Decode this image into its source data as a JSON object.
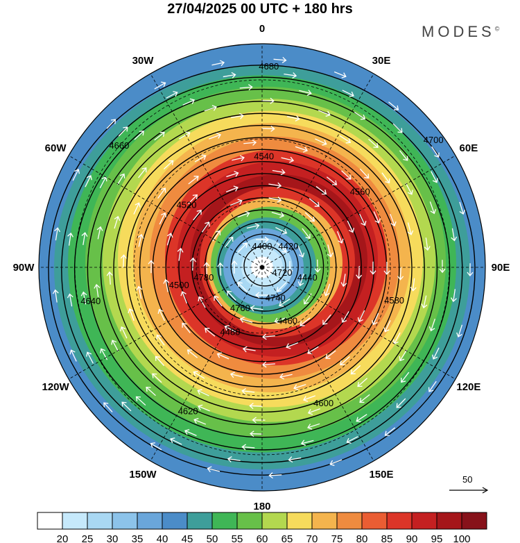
{
  "title": "27/04/2025  00 UTC  + 180 hrs",
  "brand": "MODES",
  "brand_mark": "©",
  "longitude_labels": [
    "0",
    "30E",
    "60E",
    "90E",
    "120E",
    "150E",
    "180",
    "150W",
    "120W",
    "90W",
    "60W",
    "30W"
  ],
  "contour_levels": [
    "4400",
    "4420",
    "4440",
    "4460",
    "4480",
    "4500",
    "4520",
    "4540",
    "4560",
    "4580",
    "4600",
    "4620",
    "4640",
    "4660",
    "4680",
    "4700",
    "4720",
    "4740",
    "4760",
    "4780"
  ],
  "colorbar": {
    "ticks": [
      "20",
      "25",
      "30",
      "35",
      "40",
      "45",
      "50",
      "55",
      "60",
      "65",
      "70",
      "75",
      "80",
      "85",
      "90",
      "95",
      "100"
    ],
    "colors": [
      "#ffffff",
      "#c6e9fb",
      "#a9d8f3",
      "#8cc3ea",
      "#6aa6da",
      "#4b8cc8",
      "#3e9e9a",
      "#3fb656",
      "#67c049",
      "#b3d84f",
      "#f6db5c",
      "#f4b44d",
      "#ef8b3f",
      "#ea5d33",
      "#dc3528",
      "#c42021",
      "#a5161a",
      "#87121a"
    ]
  },
  "reference_vector": {
    "label": "50"
  }
}
